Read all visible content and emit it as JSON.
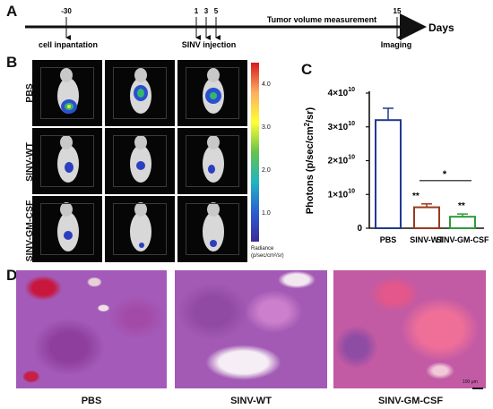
{
  "panels": {
    "a": "A",
    "b": "B",
    "c": "C",
    "d": "D"
  },
  "timeline": {
    "day_ticks": [
      "-30",
      "1",
      "3",
      "5",
      "15"
    ],
    "events": {
      "cell": "cell inpantation",
      "sinv": "SINV injection",
      "tumor": "Tumor volume measurement",
      "imaging": "Imaging"
    },
    "axis_label": "Days"
  },
  "imaging": {
    "rows": [
      "PBS",
      "SINV-WT",
      "SINV-GM-CSF"
    ],
    "colorbar": {
      "ticks": [
        "4.0",
        "3.0",
        "2.0",
        "1.0"
      ],
      "unit_line1": "Radiance",
      "unit_line2": "(p/sec/cm²/sr)",
      "colors": [
        "#d7191c",
        "#fdae61",
        "#ffff33",
        "#66c24a",
        "#1fb5c4",
        "#2b5fd1",
        "#3b2a9a"
      ]
    }
  },
  "chart_data": {
    "type": "bar",
    "categories": [
      "PBS",
      "SINV-WT",
      "SINV-GM-CSF"
    ],
    "values": [
      32000000000.0,
      6200000000.0,
      3400000000.0
    ],
    "errors": [
      3500000000.0,
      1000000000.0,
      800000000.0
    ],
    "bar_colors": [
      "#1f3a8f",
      "#9b3a1e",
      "#2e9b3c"
    ],
    "ylabel_parts": [
      "Photons (p/sec/cm",
      "2",
      "/sr)"
    ],
    "yticks": [
      {
        "value": 0,
        "mant": "0",
        "exp": ""
      },
      {
        "value": 10000000000.0,
        "mant": "1×10",
        "exp": "10"
      },
      {
        "value": 20000000000.0,
        "mant": "2×10",
        "exp": "10"
      },
      {
        "value": 30000000000.0,
        "mant": "3×10",
        "exp": "10"
      },
      {
        "value": 40000000000.0,
        "mant": "4×10",
        "exp": "10"
      }
    ],
    "ylim": [
      0,
      40000000000.0
    ],
    "significance": {
      "pair": "*",
      "wt": "**",
      "gm": "**"
    }
  },
  "histology": {
    "labels": [
      "PBS",
      "SINV-WT",
      "SINV-GM-CSF"
    ],
    "scale_bar": "100 μm"
  }
}
